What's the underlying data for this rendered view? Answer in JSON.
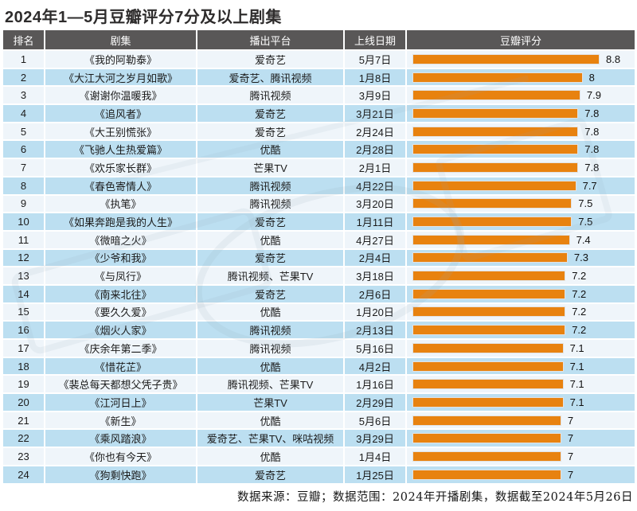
{
  "page": {
    "title": "2024年1—5月豆瓣评分7分及以上剧集",
    "footer": "数据来源：豆瓣；数据范围：2024年开播剧集，数据截至2024年5月26日"
  },
  "colors": {
    "header_bg": "#595757",
    "header_text": "#ffffff",
    "row_light": "#eff5fa",
    "row_blue": "#bcdff1",
    "bar_orange": "#e8820f"
  },
  "table": {
    "columns": [
      "排名",
      "剧集",
      "播出平台",
      "上线日期",
      "豆瓣评分"
    ],
    "rows": [
      {
        "rank": "1",
        "title": "《我的阿勒泰》",
        "platform": "爱奇艺",
        "date": "5月7日",
        "rating": 8.8
      },
      {
        "rank": "2",
        "title": "《大江大河之岁月如歌》",
        "platform": "爱奇艺、腾讯视频",
        "date": "1月8日",
        "rating": 8
      },
      {
        "rank": "3",
        "title": "《谢谢你温暖我》",
        "platform": "腾讯视频",
        "date": "3月9日",
        "rating": 7.9
      },
      {
        "rank": "4",
        "title": "《追风者》",
        "platform": "爱奇艺",
        "date": "3月21日",
        "rating": 7.8
      },
      {
        "rank": "5",
        "title": "《大王别慌张》",
        "platform": "爱奇艺",
        "date": "2月24日",
        "rating": 7.8
      },
      {
        "rank": "6",
        "title": "《飞驰人生热爱篇》",
        "platform": "优酷",
        "date": "2月28日",
        "rating": 7.8
      },
      {
        "rank": "7",
        "title": "《欢乐家长群》",
        "platform": "芒果TV",
        "date": "2月1日",
        "rating": 7.8
      },
      {
        "rank": "8",
        "title": "《春色寄情人》",
        "platform": "腾讯视频",
        "date": "4月22日",
        "rating": 7.7
      },
      {
        "rank": "9",
        "title": "《执笔》",
        "platform": "腾讯视频",
        "date": "3月20日",
        "rating": 7.5
      },
      {
        "rank": "10",
        "title": "《如果奔跑是我的人生》",
        "platform": "爱奇艺",
        "date": "1月11日",
        "rating": 7.5
      },
      {
        "rank": "11",
        "title": "《微暗之火》",
        "platform": "优酷",
        "date": "4月27日",
        "rating": 7.4
      },
      {
        "rank": "12",
        "title": "《少爷和我》",
        "platform": "爱奇艺",
        "date": "2月4日",
        "rating": 7.3
      },
      {
        "rank": "13",
        "title": "《与凤行》",
        "platform": "腾讯视频、芒果TV",
        "date": "3月18日",
        "rating": 7.2
      },
      {
        "rank": "14",
        "title": "《南来北往》",
        "platform": "爱奇艺",
        "date": "2月6日",
        "rating": 7.2
      },
      {
        "rank": "15",
        "title": "《要久久爱》",
        "platform": "优酷",
        "date": "1月20日",
        "rating": 7.2
      },
      {
        "rank": "16",
        "title": "《烟火人家》",
        "platform": "腾讯视频",
        "date": "2月13日",
        "rating": 7.2
      },
      {
        "rank": "17",
        "title": "《庆余年第二季》",
        "platform": "腾讯视频",
        "date": "5月16日",
        "rating": 7.1
      },
      {
        "rank": "18",
        "title": "《惜花芷》",
        "platform": "优酷",
        "date": "4月2日",
        "rating": 7.1
      },
      {
        "rank": "19",
        "title": "《裴总每天都想父凭子贵》",
        "platform": "腾讯视频、芒果TV",
        "date": "1月16日",
        "rating": 7.1
      },
      {
        "rank": "20",
        "title": "《江河日上》",
        "platform": "芒果TV",
        "date": "2月29日",
        "rating": 7.1
      },
      {
        "rank": "21",
        "title": "《新生》",
        "platform": "优酷",
        "date": "5月6日",
        "rating": 7
      },
      {
        "rank": "22",
        "title": "《乘风踏浪》",
        "platform": "爱奇艺、芒果TV、咪咕视频",
        "date": "3月29日",
        "rating": 7
      },
      {
        "rank": "23",
        "title": "《你也有今天》",
        "platform": "优酷",
        "date": "1月4日",
        "rating": 7
      },
      {
        "rank": "24",
        "title": "《狗剩快跑》",
        "platform": "爱奇艺",
        "date": "1月25日",
        "rating": 7
      }
    ]
  },
  "chart_data": {
    "type": "bar",
    "orientation": "horizontal",
    "title": "2024年1—5月豆瓣评分7分及以上剧集",
    "categories": [
      "《我的阿勒泰》",
      "《大江大河之岁月如歌》",
      "《谢谢你温暖我》",
      "《追风者》",
      "《大王别慌张》",
      "《飞驰人生热爱篇》",
      "《欢乐家长群》",
      "《春色寄情人》",
      "《执笔》",
      "《如果奔跑是我的人生》",
      "《微暗之火》",
      "《少爷和我》",
      "《与凤行》",
      "《南来北往》",
      "《要久久爱》",
      "《烟火人家》",
      "《庆余年第二季》",
      "《惜花芷》",
      "《裴总每天都想父凭子贵》",
      "《江河日上》",
      "《新生》",
      "《乘风踏浪》",
      "《你也有今天》",
      "《狗剩快跑》"
    ],
    "values": [
      8.8,
      8,
      7.9,
      7.8,
      7.8,
      7.8,
      7.8,
      7.7,
      7.5,
      7.5,
      7.4,
      7.3,
      7.2,
      7.2,
      7.2,
      7.2,
      7.1,
      7.1,
      7.1,
      7.1,
      7,
      7,
      7,
      7
    ],
    "value_label": "豆瓣评分",
    "xlim": [
      0,
      8.8
    ],
    "bar_color": "#e8820f",
    "value_labels_shown": true,
    "legend": "none",
    "grid": false
  }
}
